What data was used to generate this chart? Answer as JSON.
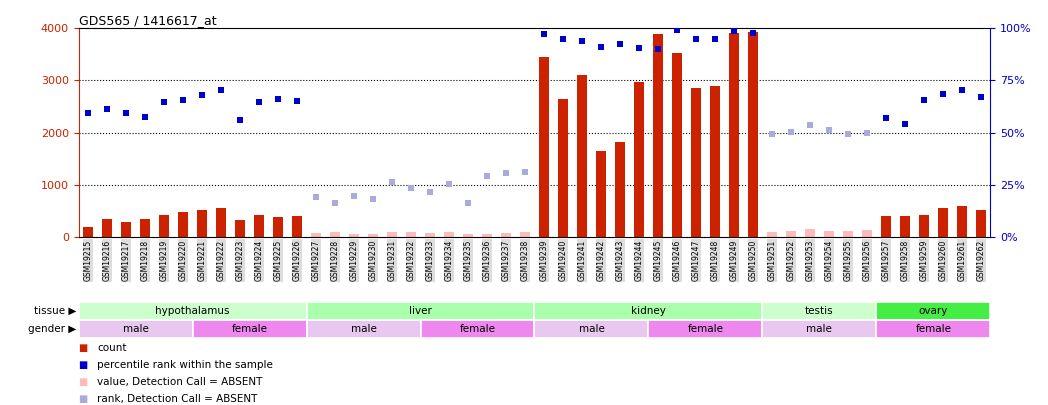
{
  "title": "GDS565 / 1416617_at",
  "samples": [
    "GSM19215",
    "GSM19216",
    "GSM19217",
    "GSM19218",
    "GSM19219",
    "GSM19220",
    "GSM19221",
    "GSM19222",
    "GSM19223",
    "GSM19224",
    "GSM19225",
    "GSM19226",
    "GSM19227",
    "GSM19228",
    "GSM19229",
    "GSM19230",
    "GSM19231",
    "GSM19232",
    "GSM19233",
    "GSM19234",
    "GSM19235",
    "GSM19236",
    "GSM19237",
    "GSM19238",
    "GSM19239",
    "GSM19240",
    "GSM19241",
    "GSM19242",
    "GSM19243",
    "GSM19244",
    "GSM19245",
    "GSM19246",
    "GSM19247",
    "GSM19248",
    "GSM19249",
    "GSM19250",
    "GSM19251",
    "GSM19252",
    "GSM19253",
    "GSM19254",
    "GSM19255",
    "GSM19256",
    "GSM19257",
    "GSM19258",
    "GSM19259",
    "GSM19260",
    "GSM19261",
    "GSM19262"
  ],
  "count_values": [
    185,
    350,
    280,
    350,
    420,
    470,
    510,
    550,
    330,
    420,
    390,
    400,
    80,
    90,
    60,
    55,
    100,
    95,
    80,
    90,
    60,
    55,
    70,
    85,
    3450,
    2650,
    3100,
    1650,
    1820,
    2980,
    3900,
    3530,
    2850,
    2900,
    3920,
    3930,
    100,
    110,
    150,
    120,
    120,
    135,
    400,
    400,
    420,
    560,
    590,
    520
  ],
  "percentile_values": [
    2380,
    2450,
    2370,
    2300,
    2580,
    2620,
    2730,
    2820,
    2240,
    2580,
    2640,
    2610,
    760,
    660,
    780,
    720,
    1050,
    940,
    860,
    1010,
    660,
    1170,
    1220,
    1240,
    3900,
    3800,
    3750,
    3650,
    3700,
    3620,
    3600,
    3960,
    3800,
    3800,
    3950,
    3920,
    1980,
    2020,
    2140,
    2050,
    1980,
    2000,
    2280,
    2170,
    2620,
    2750,
    2820,
    2690
  ],
  "absent_mask": [
    false,
    false,
    false,
    false,
    false,
    false,
    false,
    false,
    false,
    false,
    false,
    false,
    true,
    true,
    true,
    true,
    true,
    true,
    true,
    true,
    true,
    true,
    true,
    true,
    false,
    false,
    false,
    false,
    false,
    false,
    false,
    false,
    false,
    false,
    false,
    false,
    true,
    true,
    true,
    true,
    true,
    true,
    false,
    false,
    false,
    false,
    false,
    false
  ],
  "ylim_left": [
    0,
    4000
  ],
  "ylim_right": [
    0,
    100
  ],
  "yticks_left": [
    0,
    1000,
    2000,
    3000,
    4000
  ],
  "yticks_right": [
    0,
    25,
    50,
    75,
    100
  ],
  "tissue_groups": [
    {
      "label": "hypothalamus",
      "start": 0,
      "end": 11
    },
    {
      "label": "liver",
      "start": 12,
      "end": 23
    },
    {
      "label": "kidney",
      "start": 24,
      "end": 35
    },
    {
      "label": "testis",
      "start": 36,
      "end": 41
    },
    {
      "label": "ovary",
      "start": 42,
      "end": 47
    }
  ],
  "tissue_colors": {
    "hypothalamus": "#ccffcc",
    "liver": "#aaffaa",
    "kidney": "#aaffaa",
    "testis": "#ccffcc",
    "ovary": "#44ee44"
  },
  "gender_groups": [
    {
      "label": "male",
      "start": 0,
      "end": 5,
      "color": "#e8c8f0"
    },
    {
      "label": "female",
      "start": 6,
      "end": 11,
      "color": "#ee88ee"
    },
    {
      "label": "male",
      "start": 12,
      "end": 17,
      "color": "#e8c8f0"
    },
    {
      "label": "female",
      "start": 18,
      "end": 23,
      "color": "#ee88ee"
    },
    {
      "label": "male",
      "start": 24,
      "end": 29,
      "color": "#e8c8f0"
    },
    {
      "label": "female",
      "start": 30,
      "end": 35,
      "color": "#ee88ee"
    },
    {
      "label": "male",
      "start": 36,
      "end": 41,
      "color": "#e8c8f0"
    },
    {
      "label": "female",
      "start": 42,
      "end": 47,
      "color": "#ee88ee"
    }
  ],
  "bar_color_present": "#cc2200",
  "bar_color_absent": "#ffbbbb",
  "dot_color_present": "#0000cc",
  "dot_color_absent": "#aaaadd",
  "xtick_bg": "#dddddd",
  "legend_items": [
    {
      "color": "#cc2200",
      "label": "count"
    },
    {
      "color": "#0000cc",
      "label": "percentile rank within the sample"
    },
    {
      "color": "#ffbbbb",
      "label": "value, Detection Call = ABSENT"
    },
    {
      "color": "#aaaadd",
      "label": "rank, Detection Call = ABSENT"
    }
  ]
}
